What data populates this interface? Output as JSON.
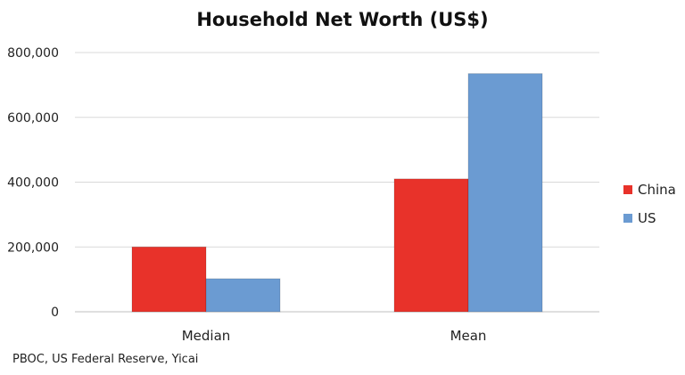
{
  "chart_data": {
    "type": "bar",
    "title": "Household Net Worth (US$)",
    "source": "PBOC, US Federal Reserve, Yicai",
    "categories": [
      "Median",
      "Mean"
    ],
    "series": [
      {
        "name": "China",
        "color": "#e8322a",
        "values": [
          200000,
          410000
        ]
      },
      {
        "name": "US",
        "color": "#6b9bd2",
        "values": [
          102000,
          735000
        ]
      }
    ],
    "xlabel": "",
    "ylabel": "",
    "ylim": [
      0,
      800000
    ],
    "yticks": [
      0,
      200000,
      400000,
      600000,
      800000
    ],
    "ytick_labels": [
      "0",
      "200,000",
      "400,000",
      "600,000",
      "800,000"
    ],
    "grid": true,
    "legend_position": "right"
  }
}
